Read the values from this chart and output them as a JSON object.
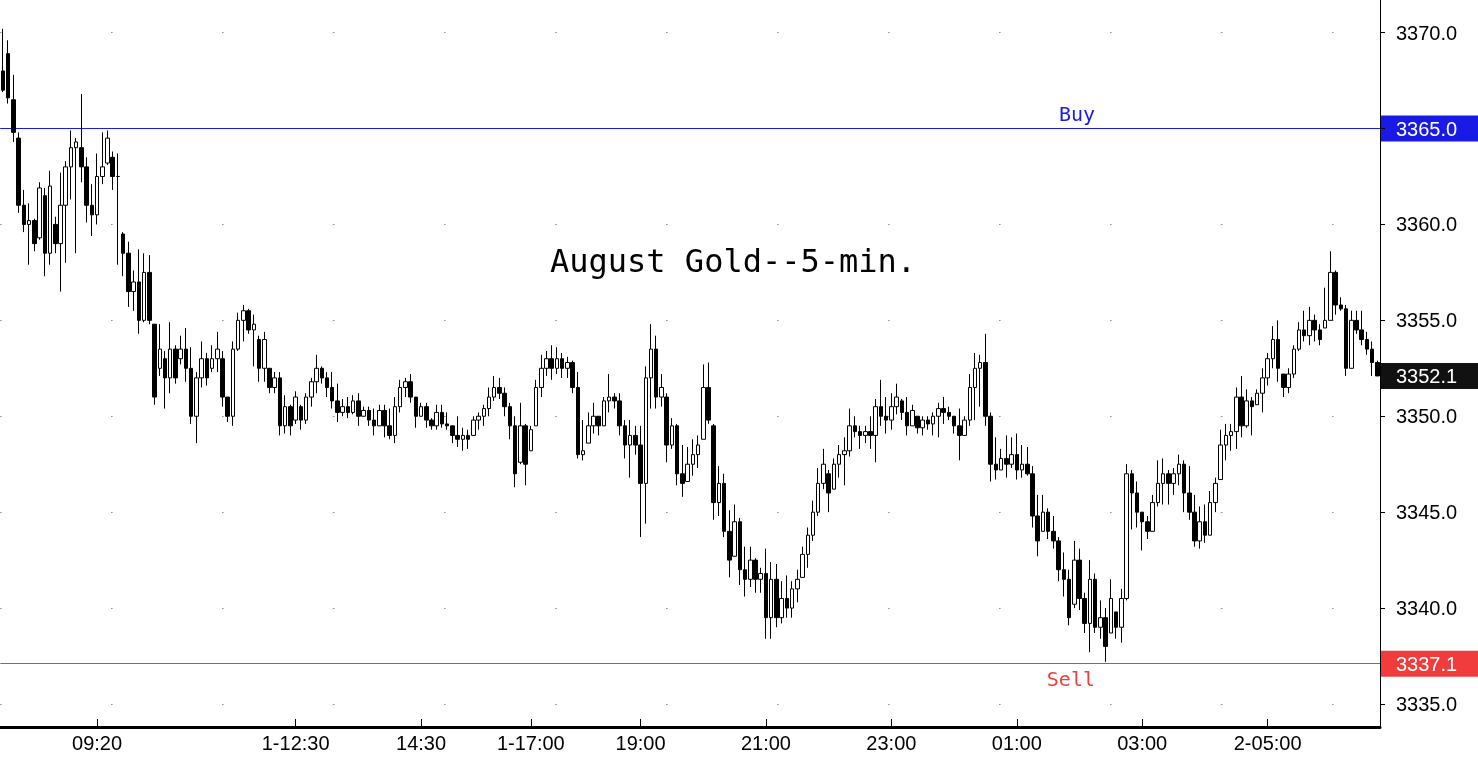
{
  "chart_data": {
    "type": "candlestick",
    "title": "August Gold--5-min.",
    "color": "#000000",
    "grid": "y",
    "categories": [
      null,
      null,
      null,
      null,
      null,
      null,
      null,
      null,
      null,
      null,
      null,
      null,
      null,
      null,
      null,
      null,
      null,
      null,
      "09:20",
      null,
      null,
      null,
      null,
      null,
      null,
      null,
      null,
      null,
      null,
      null,
      null,
      null,
      null,
      null,
      null,
      null,
      null,
      null,
      null,
      null,
      null,
      null,
      null,
      null,
      null,
      null,
      null,
      null,
      null,
      null,
      null,
      null,
      null,
      null,
      null,
      null,
      "1-12:30",
      null,
      null,
      null,
      null,
      null,
      null,
      null,
      null,
      null,
      null,
      null,
      null,
      null,
      null,
      null,
      null,
      null,
      null,
      null,
      null,
      null,
      null,
      null,
      "14:30",
      null,
      null,
      null,
      null,
      null,
      null,
      null,
      null,
      null,
      null,
      null,
      null,
      null,
      null,
      null,
      null,
      null,
      null,
      null,
      null,
      "1-17:00",
      null,
      null,
      null,
      null,
      null,
      null,
      null,
      null,
      null,
      null,
      null,
      null,
      null,
      null,
      null,
      null,
      null,
      null,
      null,
      null,
      "19:00",
      null,
      null,
      null,
      null,
      null,
      null,
      null,
      null,
      null,
      null,
      null,
      null,
      null,
      null,
      null,
      null,
      null,
      null,
      null,
      null,
      null,
      null,
      null,
      "21:00",
      null,
      null,
      null,
      null,
      null,
      null,
      null,
      null,
      null,
      null,
      null,
      null,
      null,
      null,
      null,
      null,
      null,
      null,
      null,
      null,
      null,
      null,
      null,
      "23:00",
      null,
      null,
      null,
      null,
      null,
      null,
      null,
      null,
      null,
      null,
      null,
      null,
      null,
      null,
      null,
      null,
      null,
      null,
      null,
      null,
      null,
      null,
      null,
      "01:00",
      null,
      null,
      null,
      null,
      null,
      null,
      null,
      null,
      null,
      null,
      null,
      null,
      null,
      null,
      null,
      null,
      null,
      null,
      null,
      null,
      null,
      null,
      null,
      "03:00",
      null,
      null,
      null,
      null,
      null,
      null,
      null,
      null,
      null,
      null,
      null,
      null,
      null,
      null,
      null,
      null,
      null,
      null,
      null,
      null,
      null,
      null,
      null,
      "2-05:00",
      null,
      null,
      null,
      null,
      null,
      null,
      null,
      null,
      null,
      null,
      null,
      null,
      null,
      null,
      null,
      null,
      null,
      null,
      null,
      null,
      null
    ],
    "ohlc": [
      [
        3368.0,
        3370.2,
        3366.9,
        3367.0
      ],
      [
        3368.9,
        3369.6,
        3366.3,
        3366.6
      ],
      [
        3366.5,
        3367.8,
        3364.3,
        3364.8
      ],
      [
        3364.5,
        3364.8,
        3360.6,
        3361.0
      ],
      [
        3361.0,
        3361.8,
        3359.6,
        3360.0
      ],
      [
        3360.0,
        3361.1,
        3357.9,
        3360.2
      ],
      [
        3360.2,
        3360.3,
        3358.6,
        3359.0
      ],
      [
        3359.3,
        3362.2,
        3359.2,
        3361.9
      ],
      [
        3361.5,
        3361.9,
        3357.3,
        3358.5
      ],
      [
        3358.5,
        3362.8,
        3357.9,
        3362.0
      ],
      [
        3360.0,
        3360.4,
        3358.5,
        3359.0
      ],
      [
        3359.0,
        3362.7,
        3356.5,
        3361.0
      ],
      [
        3361.0,
        3363.3,
        3358.0,
        3363.0
      ],
      [
        3363.0,
        3364.9,
        3361.3,
        3364.0
      ],
      [
        3364.0,
        3364.5,
        3358.5,
        3364.3
      ],
      [
        3364.0,
        3366.8,
        3362.2,
        3363.0
      ],
      [
        3363.0,
        3363.5,
        3360.1,
        3361.0
      ],
      [
        3361.0,
        3362.1,
        3359.4,
        3360.5
      ],
      [
        3360.5,
        3363.7,
        3360.0,
        3362.5
      ],
      [
        3362.5,
        3364.8,
        3362.1,
        3363.0
      ],
      [
        3363.2,
        3364.9,
        3363.1,
        3364.5
      ],
      [
        3363.5,
        3363.8,
        3361.8,
        3362.5
      ],
      [
        3362.5,
        3363.7,
        3357.9,
        3362.5
      ],
      [
        3359.5,
        3359.6,
        3357.3,
        3358.5
      ],
      [
        3358.5,
        3359.1,
        3355.7,
        3356.5
      ],
      [
        3356.5,
        3357.6,
        3355.5,
        3357.0
      ],
      [
        3357.0,
        3358.7,
        3354.3,
        3355.0
      ],
      [
        3355.0,
        3358.5,
        3354.9,
        3357.5
      ],
      [
        3357.5,
        3358.4,
        3354.8,
        3355.0
      ],
      [
        3354.8,
        3354.8,
        3350.6,
        3351.0
      ],
      [
        3352.5,
        3354.8,
        3352.1,
        3353.5
      ],
      [
        3353.0,
        3353.4,
        3350.4,
        3352.0
      ],
      [
        3352.0,
        3354.9,
        3351.2,
        3353.5
      ],
      [
        3353.5,
        3353.7,
        3351.7,
        3352.0
      ],
      [
        3353.0,
        3354.2,
        3352.7,
        3353.5
      ],
      [
        3353.5,
        3354.6,
        3351.8,
        3352.5
      ],
      [
        3352.5,
        3353.6,
        3349.6,
        3350.0
      ],
      [
        3350.0,
        3352.3,
        3348.6,
        3352.0
      ],
      [
        3352.0,
        3353.9,
        3351.5,
        3353.0
      ],
      [
        3353.0,
        3353.3,
        3351.6,
        3352.0
      ],
      [
        3352.5,
        3353.7,
        3352.3,
        3353.0
      ],
      [
        3353.0,
        3354.4,
        3352.3,
        3353.5
      ],
      [
        3353.0,
        3353.4,
        3350.5,
        3351.0
      ],
      [
        3351.0,
        3351.0,
        3349.7,
        3350.0
      ],
      [
        3350.0,
        3353.9,
        3349.5,
        3353.5
      ],
      [
        3353.5,
        3355.4,
        3353.4,
        3355.0
      ],
      [
        3355.0,
        3355.8,
        3353.9,
        3355.5
      ],
      [
        3355.5,
        3355.6,
        3354.3,
        3354.5
      ],
      [
        3354.5,
        3355.3,
        3352.6,
        3354.8
      ],
      [
        3354.0,
        3354.2,
        3351.8,
        3352.5
      ],
      [
        3352.5,
        3354.4,
        3351.8,
        3354.0
      ],
      [
        3352.5,
        3352.5,
        3351.2,
        3351.5
      ],
      [
        3351.5,
        3352.3,
        3351.2,
        3352.0
      ],
      [
        3352.0,
        3352.3,
        3349.0,
        3349.5
      ],
      [
        3349.5,
        3351.1,
        3349.1,
        3350.5
      ],
      [
        3350.5,
        3350.6,
        3349.0,
        3349.5
      ],
      [
        3349.8,
        3351.3,
        3349.6,
        3351.0
      ],
      [
        3350.5,
        3350.6,
        3349.3,
        3349.8
      ],
      [
        3349.8,
        3351.2,
        3349.6,
        3351.0
      ],
      [
        3351.0,
        3352.0,
        3350.5,
        3351.8
      ],
      [
        3351.8,
        3353.2,
        3351.2,
        3352.5
      ],
      [
        3352.5,
        3352.6,
        3351.7,
        3352.0
      ],
      [
        3352.0,
        3352.3,
        3351.0,
        3351.5
      ],
      [
        3351.5,
        3352.3,
        3350.4,
        3350.8
      ],
      [
        3350.8,
        3351.7,
        3349.7,
        3350.2
      ],
      [
        3350.2,
        3350.9,
        3350.0,
        3350.5
      ],
      [
        3350.5,
        3351.0,
        3349.9,
        3350.2
      ],
      [
        3350.2,
        3351.1,
        3350.1,
        3350.8
      ],
      [
        3350.8,
        3351.2,
        3349.5,
        3350.0
      ],
      [
        3350.0,
        3350.5,
        3350.0,
        3350.3
      ],
      [
        3350.3,
        3350.5,
        3349.5,
        3349.8
      ],
      [
        3349.8,
        3350.4,
        3349.0,
        3349.5
      ],
      [
        3349.5,
        3350.6,
        3349.5,
        3350.3
      ],
      [
        3350.3,
        3350.6,
        3348.9,
        3349.5
      ],
      [
        3349.5,
        3350.4,
        3348.8,
        3349.0
      ],
      [
        3349.0,
        3351.0,
        3348.6,
        3350.5
      ],
      [
        3350.5,
        3351.9,
        3350.2,
        3351.5
      ],
      [
        3351.5,
        3352.0,
        3351.0,
        3351.8
      ],
      [
        3351.8,
        3352.2,
        3350.7,
        3351.0
      ],
      [
        3351.0,
        3351.0,
        3349.4,
        3350.0
      ],
      [
        3350.0,
        3350.7,
        3350.0,
        3350.5
      ],
      [
        3350.5,
        3350.7,
        3349.4,
        3349.8
      ],
      [
        3349.8,
        3349.9,
        3349.3,
        3349.5
      ],
      [
        3349.5,
        3350.6,
        3349.3,
        3350.2
      ],
      [
        3350.2,
        3350.6,
        3349.4,
        3349.6
      ],
      [
        3349.6,
        3350.2,
        3349.3,
        3349.5
      ],
      [
        3349.5,
        3349.5,
        3348.6,
        3349.0
      ],
      [
        3349.0,
        3350.0,
        3348.4,
        3348.8
      ],
      [
        3348.8,
        3349.4,
        3348.2,
        3349.0
      ],
      [
        3349.0,
        3349.3,
        3348.3,
        3348.8
      ],
      [
        3349.0,
        3350.0,
        3349.0,
        3349.8
      ],
      [
        3349.8,
        3350.2,
        3349.3,
        3350.0
      ],
      [
        3350.0,
        3350.6,
        3349.5,
        3350.4
      ],
      [
        3350.4,
        3351.5,
        3350.0,
        3351.0
      ],
      [
        3351.0,
        3352.1,
        3350.8,
        3351.5
      ],
      [
        3351.5,
        3352.0,
        3350.9,
        3351.2
      ],
      [
        3351.2,
        3351.5,
        3350.0,
        3350.5
      ],
      [
        3350.5,
        3350.7,
        3348.8,
        3349.5
      ],
      [
        3349.5,
        3350.0,
        3346.3,
        3347.0
      ],
      [
        3347.6,
        3350.7,
        3347.5,
        3349.5
      ],
      [
        3349.5,
        3349.6,
        3346.4,
        3347.5
      ],
      [
        3348.2,
        3349.5,
        3348.2,
        3349.3
      ],
      [
        3349.5,
        3351.9,
        3349.5,
        3351.5
      ],
      [
        3351.5,
        3353.2,
        3351.0,
        3352.5
      ],
      [
        3352.5,
        3353.4,
        3352.1,
        3353.0
      ],
      [
        3353.0,
        3353.7,
        3351.9,
        3352.5
      ],
      [
        3352.5,
        3353.6,
        3352.2,
        3353.0
      ],
      [
        3353.0,
        3353.3,
        3352.0,
        3352.5
      ],
      [
        3352.5,
        3353.1,
        3352.0,
        3352.8
      ],
      [
        3352.8,
        3352.9,
        3351.2,
        3351.5
      ],
      [
        3351.5,
        3352.3,
        3347.8,
        3348.0
      ],
      [
        3348.0,
        3349.8,
        3347.7,
        3348.2
      ],
      [
        3348.6,
        3350.2,
        3348.6,
        3349.5
      ],
      [
        3349.5,
        3350.7,
        3349.1,
        3350.0
      ],
      [
        3350.0,
        3350.0,
        3349.0,
        3349.5
      ],
      [
        3349.5,
        3351.0,
        3349.5,
        3350.8
      ],
      [
        3350.8,
        3352.2,
        3350.2,
        3351.0
      ],
      [
        3351.0,
        3351.2,
        3350.4,
        3350.8
      ],
      [
        3350.8,
        3351.2,
        3349.0,
        3349.5
      ],
      [
        3349.5,
        3349.8,
        3347.8,
        3348.5
      ],
      [
        3348.5,
        3349.8,
        3346.8,
        3349.0
      ],
      [
        3349.0,
        3349.5,
        3348.0,
        3348.5
      ],
      [
        3348.5,
        3349.5,
        3343.7,
        3346.5
      ],
      [
        3346.5,
        3352.6,
        3344.4,
        3352.0
      ],
      [
        3352.0,
        3354.8,
        3350.4,
        3353.5
      ],
      [
        3353.5,
        3354.2,
        3350.4,
        3351.0
      ],
      [
        3351.0,
        3352.2,
        3350.5,
        3351.5
      ],
      [
        3351.0,
        3351.2,
        3347.6,
        3348.5
      ],
      [
        3348.5,
        3349.9,
        3348.3,
        3349.5
      ],
      [
        3349.5,
        3349.6,
        3346.4,
        3347.0
      ],
      [
        3347.0,
        3348.5,
        3345.8,
        3346.5
      ],
      [
        3346.6,
        3348.4,
        3346.6,
        3347.5
      ],
      [
        3347.5,
        3348.8,
        3346.9,
        3348.0
      ],
      [
        3348.0,
        3349.0,
        3347.3,
        3348.5
      ],
      [
        3348.8,
        3352.7,
        3348.8,
        3351.5
      ],
      [
        3351.5,
        3352.8,
        3349.6,
        3349.8
      ],
      [
        3349.5,
        3349.6,
        3344.6,
        3345.5
      ],
      [
        3345.5,
        3347.4,
        3344.8,
        3346.5
      ],
      [
        3346.5,
        3347.0,
        3343.7,
        3344.0
      ],
      [
        3344.0,
        3345.1,
        3341.6,
        3342.5
      ],
      [
        3342.7,
        3345.4,
        3342.7,
        3344.5
      ],
      [
        3344.5,
        3344.7,
        3341.2,
        3342.0
      ],
      [
        3342.0,
        3343.2,
        3340.6,
        3341.5
      ],
      [
        3341.5,
        3343.2,
        3341.1,
        3342.5
      ],
      [
        3342.5,
        3342.6,
        3340.8,
        3341.5
      ],
      [
        3341.5,
        3342.1,
        3340.8,
        3341.8
      ],
      [
        3341.8,
        3343.1,
        3338.4,
        3339.5
      ],
      [
        3339.5,
        3342.4,
        3338.4,
        3341.5
      ],
      [
        3341.5,
        3342.3,
        3339.0,
        3339.5
      ],
      [
        3339.5,
        3341.4,
        3339.2,
        3340.5
      ],
      [
        3340.5,
        3341.7,
        3339.5,
        3340.0
      ],
      [
        3340.0,
        3341.4,
        3339.5,
        3341.0
      ],
      [
        3341.0,
        3342.0,
        3340.3,
        3341.5
      ],
      [
        3341.6,
        3343.2,
        3341.6,
        3342.8
      ],
      [
        3342.8,
        3344.2,
        3342.1,
        3343.8
      ],
      [
        3343.8,
        3345.6,
        3343.5,
        3345.0
      ],
      [
        3345.0,
        3347.3,
        3344.8,
        3346.5
      ],
      [
        3346.5,
        3348.3,
        3346.2,
        3347.5
      ],
      [
        3347.0,
        3347.2,
        3345.0,
        3346.0
      ],
      [
        3346.2,
        3347.8,
        3346.2,
        3347.5
      ],
      [
        3347.5,
        3348.5,
        3346.8,
        3348.0
      ],
      [
        3348.0,
        3348.9,
        3346.4,
        3348.2
      ],
      [
        3348.2,
        3350.4,
        3347.9,
        3349.5
      ],
      [
        3349.5,
        3350.0,
        3348.9,
        3349.2
      ],
      [
        3349.2,
        3349.5,
        3348.3,
        3349.0
      ],
      [
        3349.0,
        3349.5,
        3348.6,
        3349.2
      ],
      [
        3349.2,
        3350.0,
        3348.3,
        3349.0
      ],
      [
        3349.0,
        3350.9,
        3347.6,
        3350.5
      ],
      [
        3350.5,
        3351.9,
        3349.5,
        3350.0
      ],
      [
        3350.0,
        3351.0,
        3349.1,
        3349.8
      ],
      [
        3349.8,
        3351.2,
        3349.3,
        3350.5
      ],
      [
        3350.5,
        3351.7,
        3350.1,
        3351.0
      ],
      [
        3350.8,
        3350.9,
        3349.8,
        3350.2
      ],
      [
        3350.2,
        3351.0,
        3349.0,
        3349.5
      ],
      [
        3349.5,
        3350.6,
        3349.5,
        3350.3
      ],
      [
        3350.0,
        3350.0,
        3349.1,
        3349.4
      ],
      [
        3349.4,
        3350.0,
        3349.0,
        3349.8
      ],
      [
        3349.8,
        3350.0,
        3349.3,
        3349.6
      ],
      [
        3349.6,
        3350.2,
        3349.0,
        3350.0
      ],
      [
        3350.0,
        3350.7,
        3348.9,
        3350.4
      ],
      [
        3350.4,
        3351.0,
        3349.6,
        3350.2
      ],
      [
        3350.2,
        3350.5,
        3349.8,
        3350.0
      ],
      [
        3350.0,
        3350.0,
        3349.1,
        3349.5
      ],
      [
        3349.5,
        3350.4,
        3347.7,
        3349.0
      ],
      [
        3349.0,
        3350.0,
        3349.0,
        3349.8
      ],
      [
        3349.8,
        3352.2,
        3349.5,
        3351.5
      ],
      [
        3351.5,
        3353.3,
        3349.8,
        3352.5
      ],
      [
        3352.5,
        3353.2,
        3350.5,
        3352.8
      ],
      [
        3352.8,
        3354.3,
        3349.5,
        3350.0
      ],
      [
        3350.0,
        3350.2,
        3346.6,
        3347.5
      ],
      [
        3347.5,
        3348.9,
        3346.7,
        3347.2
      ],
      [
        3347.2,
        3348.3,
        3347.2,
        3347.8
      ],
      [
        3347.8,
        3349.0,
        3346.8,
        3347.5
      ],
      [
        3347.5,
        3348.9,
        3347.3,
        3348.0
      ],
      [
        3348.0,
        3349.1,
        3346.7,
        3347.2
      ],
      [
        3347.2,
        3348.5,
        3346.8,
        3347.5
      ],
      [
        3347.5,
        3348.4,
        3346.9,
        3347.0
      ],
      [
        3347.0,
        3347.4,
        3344.2,
        3344.8
      ],
      [
        3344.8,
        3345.9,
        3342.7,
        3343.5
      ],
      [
        3344.0,
        3345.9,
        3344.0,
        3345.0
      ],
      [
        3345.0,
        3345.2,
        3343.6,
        3344.0
      ],
      [
        3344.0,
        3344.8,
        3343.1,
        3343.5
      ],
      [
        3343.5,
        3343.7,
        3341.4,
        3342.0
      ],
      [
        3342.0,
        3342.9,
        3340.6,
        3341.5
      ],
      [
        3341.5,
        3342.0,
        3339.1,
        3339.5
      ],
      [
        3340.2,
        3343.5,
        3340.0,
        3342.5
      ],
      [
        3342.5,
        3343.1,
        3339.9,
        3340.5
      ],
      [
        3340.5,
        3340.8,
        3338.7,
        3339.2
      ],
      [
        3339.2,
        3342.5,
        3337.7,
        3341.5
      ],
      [
        3341.5,
        3341.8,
        3338.7,
        3339.0
      ],
      [
        3339.0,
        3340.4,
        3338.4,
        3339.5
      ],
      [
        3339.5,
        3340.0,
        3337.2,
        3338.0
      ],
      [
        3338.7,
        3341.5,
        3338.7,
        3340.5
      ],
      [
        3339.8,
        3339.8,
        3338.4,
        3339.0
      ],
      [
        3339.0,
        3341.0,
        3338.2,
        3340.5
      ],
      [
        3340.5,
        3347.5,
        3340.4,
        3347.0
      ],
      [
        3347.0,
        3347.2,
        3344.1,
        3346.0
      ],
      [
        3346.0,
        3346.6,
        3344.2,
        3345.0
      ],
      [
        3345.0,
        3345.0,
        3343.0,
        3344.5
      ],
      [
        3344.5,
        3344.8,
        3343.6,
        3344.0
      ],
      [
        3344.0,
        3345.9,
        3344.0,
        3345.5
      ],
      [
        3345.5,
        3347.7,
        3345.3,
        3346.5
      ],
      [
        3346.5,
        3347.8,
        3345.4,
        3347.0
      ],
      [
        3347.0,
        3347.2,
        3345.4,
        3346.5
      ],
      [
        3346.5,
        3347.3,
        3345.9,
        3347.0
      ],
      [
        3347.0,
        3348.0,
        3346.4,
        3347.5
      ],
      [
        3347.5,
        3347.7,
        3345.0,
        3346.0
      ],
      [
        3346.0,
        3347.4,
        3344.6,
        3345.0
      ],
      [
        3345.0,
        3345.9,
        3343.2,
        3343.5
      ],
      [
        3343.5,
        3345.3,
        3343.1,
        3344.5
      ],
      [
        3344.5,
        3345.4,
        3343.4,
        3343.8
      ],
      [
        3343.8,
        3346.1,
        3343.8,
        3345.5
      ],
      [
        3345.5,
        3346.8,
        3345.0,
        3346.5
      ],
      [
        3346.7,
        3349.3,
        3346.7,
        3348.5
      ],
      [
        3348.5,
        3349.6,
        3347.7,
        3349.0
      ],
      [
        3349.0,
        3349.6,
        3348.2,
        3349.2
      ],
      [
        3349.2,
        3351.5,
        3348.3,
        3351.0
      ],
      [
        3351.0,
        3352.1,
        3348.9,
        3349.5
      ],
      [
        3349.5,
        3351.4,
        3349.4,
        3350.8
      ],
      [
        3350.8,
        3351.0,
        3349.0,
        3350.5
      ],
      [
        3350.6,
        3351.4,
        3350.6,
        3351.2
      ],
      [
        3351.2,
        3352.5,
        3350.2,
        3352.0
      ],
      [
        3352.0,
        3353.3,
        3351.6,
        3353.0
      ],
      [
        3353.0,
        3354.7,
        3352.5,
        3354.0
      ],
      [
        3354.0,
        3355.0,
        3351.8,
        3352.5
      ],
      [
        3352.2,
        3352.2,
        3351.0,
        3351.5
      ],
      [
        3351.5,
        3352.5,
        3351.2,
        3352.2
      ],
      [
        3352.2,
        3353.7,
        3352.0,
        3353.5
      ],
      [
        3353.5,
        3354.9,
        3353.4,
        3354.5
      ],
      [
        3354.5,
        3355.5,
        3353.9,
        3354.2
      ],
      [
        3354.2,
        3355.7,
        3353.7,
        3355.0
      ],
      [
        3355.0,
        3355.3,
        3353.9,
        3354.5
      ],
      [
        3354.5,
        3354.8,
        3353.7,
        3354.0
      ],
      [
        3354.6,
        3356.7,
        3354.6,
        3355.0
      ],
      [
        3355.0,
        3358.6,
        3355.0,
        3357.5
      ],
      [
        3357.5,
        3357.6,
        3355.3,
        3355.8
      ],
      [
        3355.8,
        3356.2,
        3355.5,
        3355.6
      ],
      [
        3355.6,
        3355.8,
        3352.1,
        3352.5
      ],
      [
        3352.5,
        3355.5,
        3352.5,
        3355.0
      ],
      [
        3355.0,
        3355.5,
        3354.3,
        3354.5
      ],
      [
        3354.5,
        3355.5,
        3353.7,
        3354.0
      ],
      [
        3354.0,
        3354.4,
        3353.2,
        3353.5
      ],
      [
        3353.5,
        3353.9,
        3352.1,
        3352.8
      ],
      [
        3352.8,
        3352.9,
        3352.1,
        3352.1
      ]
    ],
    "ylim": [
      3333.8,
      3371.7
    ],
    "yticks": [
      {
        "value": 3335,
        "label": "3335.0"
      },
      {
        "value": 3340,
        "label": "3340.0"
      },
      {
        "value": 3345,
        "label": "3345.0"
      },
      {
        "value": 3350,
        "label": "3350.0"
      },
      {
        "value": 3355,
        "label": "3355.0"
      },
      {
        "value": 3360,
        "label": "3360.0"
      },
      {
        "value": 3365,
        "label": null
      },
      {
        "value": 3370,
        "label": "3370.0"
      }
    ],
    "ref_lines": [
      {
        "axis": "y",
        "value": 3365.0,
        "label": "Buy",
        "color": "#1a1ae6"
      },
      {
        "axis": "y",
        "value": 3337.1,
        "label": "Sell",
        "color": "#f03c3c"
      }
    ],
    "annotations": [
      "3365.0",
      "3337.1",
      "3352.1"
    ]
  }
}
